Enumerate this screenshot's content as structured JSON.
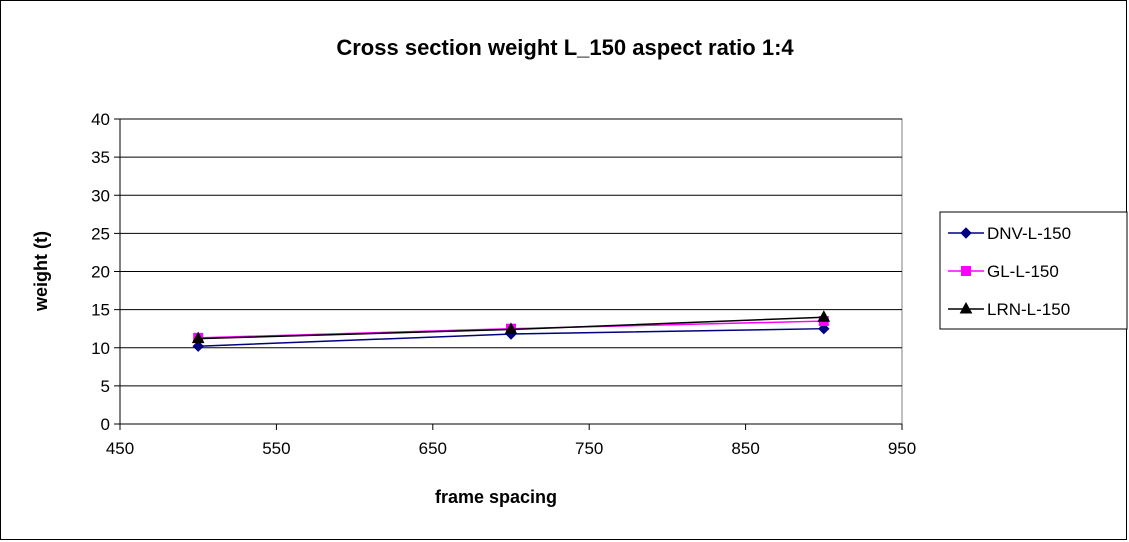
{
  "chart_data": {
    "type": "line",
    "title": "Cross section weight L_150 aspect ratio 1:4",
    "xlabel": "frame spacing",
    "ylabel": "weight (t)",
    "xlim": [
      450,
      950
    ],
    "ylim": [
      0,
      40
    ],
    "xticks": [
      450,
      550,
      650,
      750,
      850,
      950
    ],
    "yticks": [
      0,
      5,
      10,
      15,
      20,
      25,
      30,
      35,
      40
    ],
    "grid": "horizontal",
    "legend_position": "right",
    "series": [
      {
        "name": "DNV-L-150",
        "color": "#000080",
        "marker": "diamond",
        "x": [
          500,
          700,
          900
        ],
        "y": [
          10.2,
          11.8,
          12.5
        ]
      },
      {
        "name": "GL-L-150",
        "color": "#FF00FF",
        "marker": "square",
        "x": [
          500,
          700,
          900
        ],
        "y": [
          11.3,
          12.5,
          13.5
        ]
      },
      {
        "name": "LRN-L-150",
        "color": "#000000",
        "marker": "triangle",
        "x": [
          500,
          700,
          900
        ],
        "y": [
          11.2,
          12.4,
          14.0
        ]
      }
    ]
  }
}
